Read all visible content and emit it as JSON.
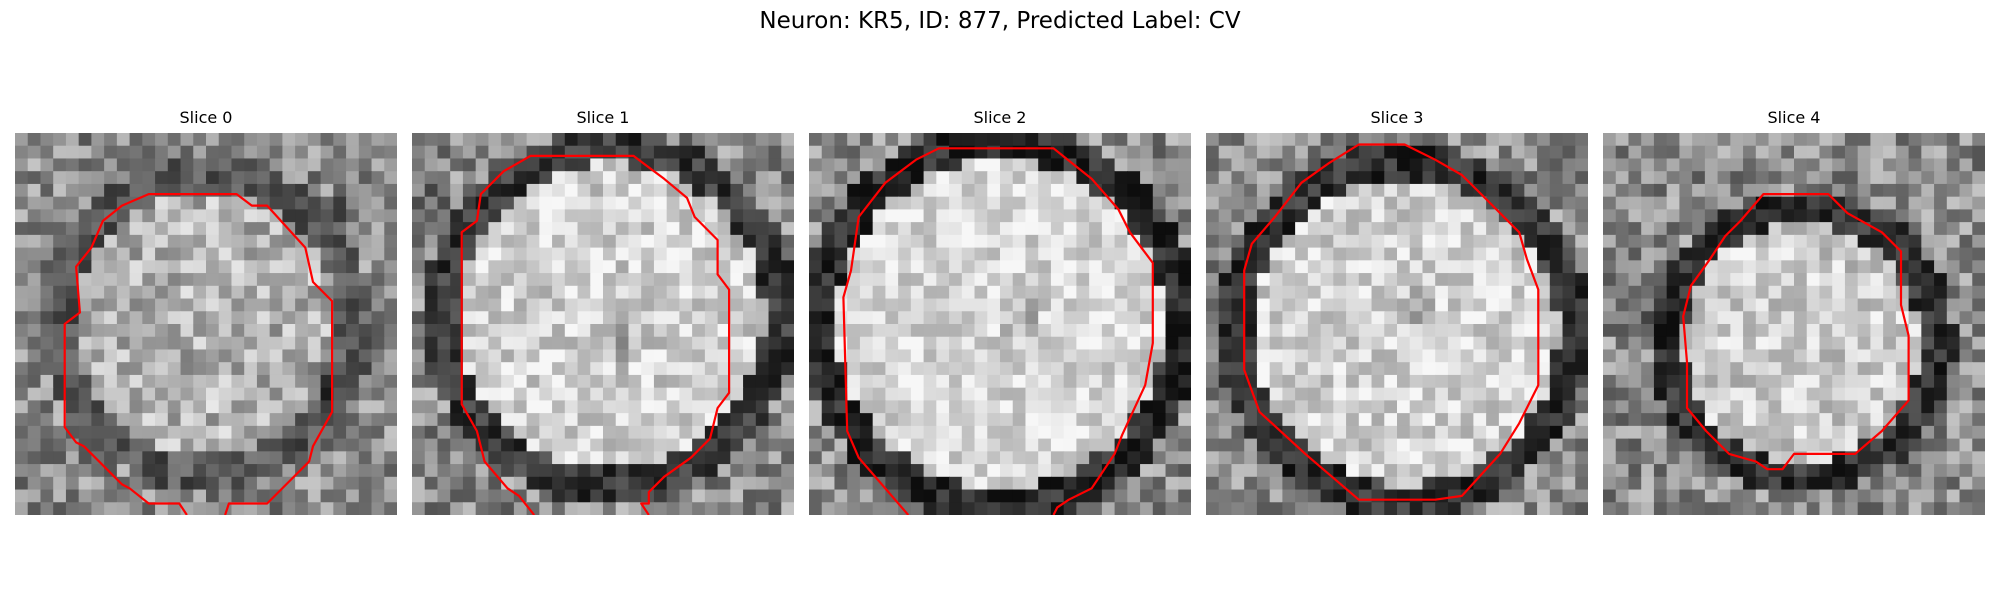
{
  "figure": {
    "title": "Neuron: KR5, ID: 877, Predicted Label: CV"
  },
  "panels": [
    {
      "title": "Slice 0",
      "contour_color": "#ff0000",
      "icon": "cell-slice-image-icon"
    },
    {
      "title": "Slice 1",
      "contour_color": "#ff0000",
      "icon": "cell-slice-image-icon"
    },
    {
      "title": "Slice 2",
      "contour_color": "#ff0000",
      "icon": "cell-slice-image-icon"
    },
    {
      "title": "Slice 3",
      "contour_color": "#ff0000",
      "icon": "cell-slice-image-icon"
    },
    {
      "title": "Slice 4",
      "contour_color": "#ff0000",
      "icon": "cell-slice-image-icon"
    }
  ]
}
